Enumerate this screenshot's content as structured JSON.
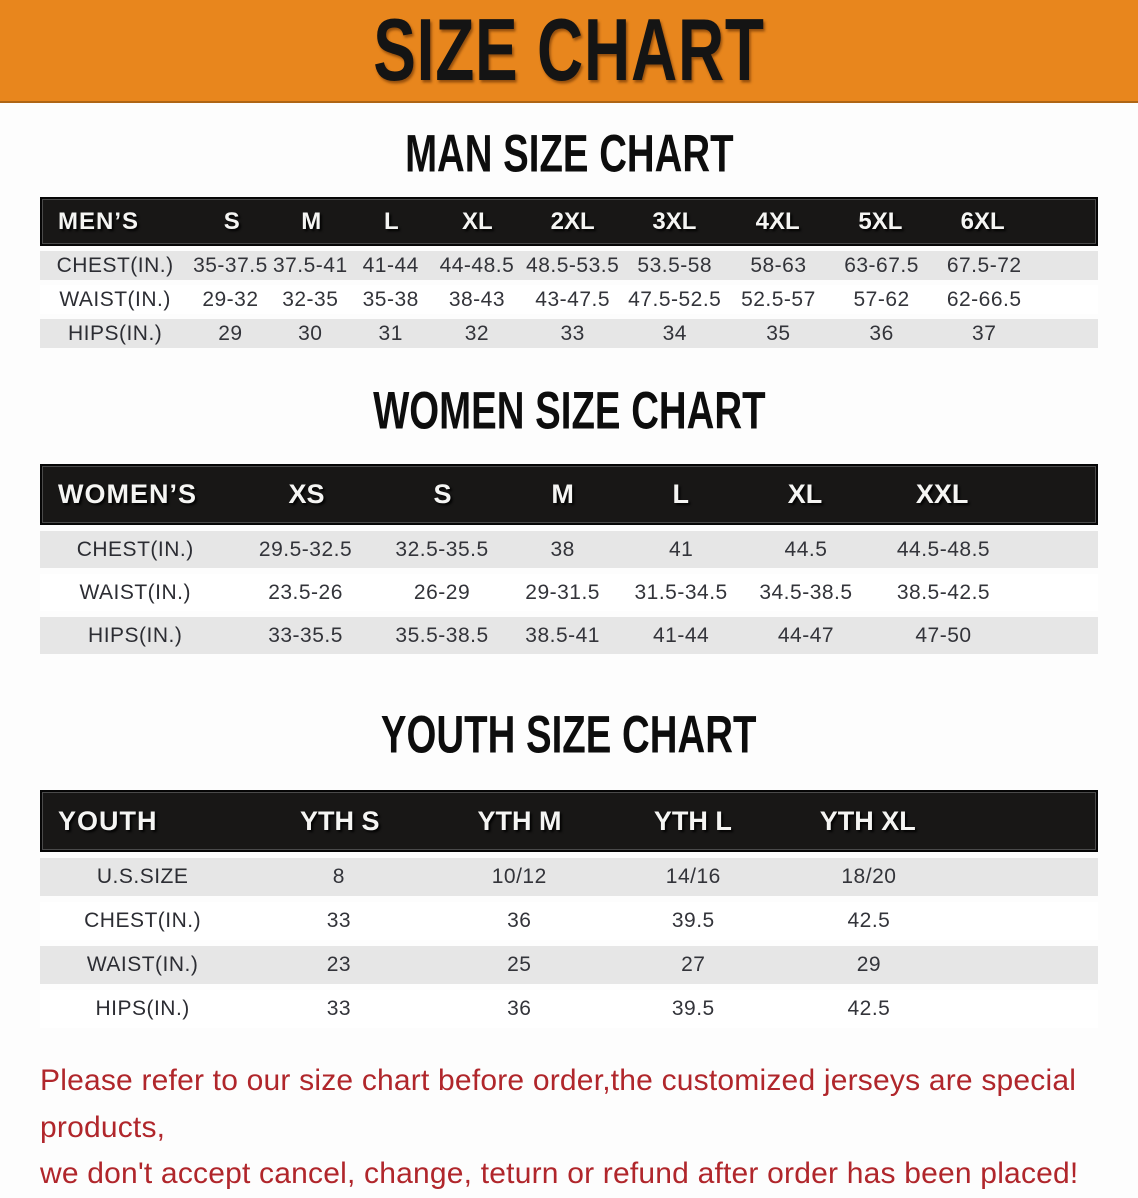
{
  "banner": {
    "title": "SIZE CHART"
  },
  "colors": {
    "accent_orange": "#E8861D",
    "header_black": "#181716",
    "row_gray": "#E6E6E6",
    "notice_red": "#B0262B"
  },
  "sections": [
    {
      "heading": "MAN SIZE CHART",
      "table": {
        "label": "MEN’S",
        "columns": [
          "S",
          "M",
          "L",
          "XL",
          "2XL",
          "3XL",
          "4XL",
          "5XL",
          "6XL"
        ],
        "rows": [
          {
            "label": "CHEST(IN.)",
            "values": [
              "35-37.5",
              "37.5-41",
              "41-44",
              "44-48.5",
              "48.5-53.5",
              "53.5-58",
              "58-63",
              "63-67.5",
              "67.5-72"
            ]
          },
          {
            "label": "WAIST(IN.)",
            "values": [
              "29-32",
              "32-35",
              "35-38",
              "38-43",
              "43-47.5",
              "47.5-52.5",
              "52.5-57",
              "57-62",
              "62-66.5"
            ]
          },
          {
            "label": "HIPS(IN.)",
            "values": [
              "29",
              "30",
              "31",
              "32",
              "33",
              "34",
              "35",
              "36",
              "37"
            ]
          }
        ]
      }
    },
    {
      "heading": "WOMEN SIZE CHART",
      "table": {
        "label": "WOMEN’S",
        "columns": [
          "XS",
          "S",
          "M",
          "L",
          "XL",
          "XXL"
        ],
        "rows": [
          {
            "label": "CHEST(IN.)",
            "values": [
              "29.5-32.5",
              "32.5-35.5",
              "38",
              "41",
              "44.5",
              "44.5-48.5"
            ]
          },
          {
            "label": "WAIST(IN.)",
            "values": [
              "23.5-26",
              "26-29",
              "29-31.5",
              "31.5-34.5",
              "34.5-38.5",
              "38.5-42.5"
            ]
          },
          {
            "label": "HIPS(IN.)",
            "values": [
              "33-35.5",
              "35.5-38.5",
              "38.5-41",
              "41-44",
              "44-47",
              "47-50"
            ]
          }
        ]
      }
    },
    {
      "heading": "YOUTH SIZE CHART",
      "table": {
        "label": "YOUTH",
        "columns": [
          "YTH S",
          "YTH M",
          "YTH L",
          "YTH XL"
        ],
        "rows": [
          {
            "label": "U.S.SIZE",
            "values": [
              "8",
              "10/12",
              "14/16",
              "18/20"
            ]
          },
          {
            "label": "CHEST(IN.)",
            "values": [
              "33",
              "36",
              "39.5",
              "42.5"
            ]
          },
          {
            "label": "WAIST(IN.)",
            "values": [
              "23",
              "25",
              "27",
              "29"
            ]
          },
          {
            "label": "HIPS(IN.)",
            "values": [
              "33",
              "36",
              "39.5",
              "42.5"
            ]
          }
        ]
      }
    }
  ],
  "footer": {
    "line1": "Please refer to our size chart before order,the customized jerseys are special products,",
    "line2": "we don't accept cancel, change, teturn or refund after order has been placed!"
  }
}
